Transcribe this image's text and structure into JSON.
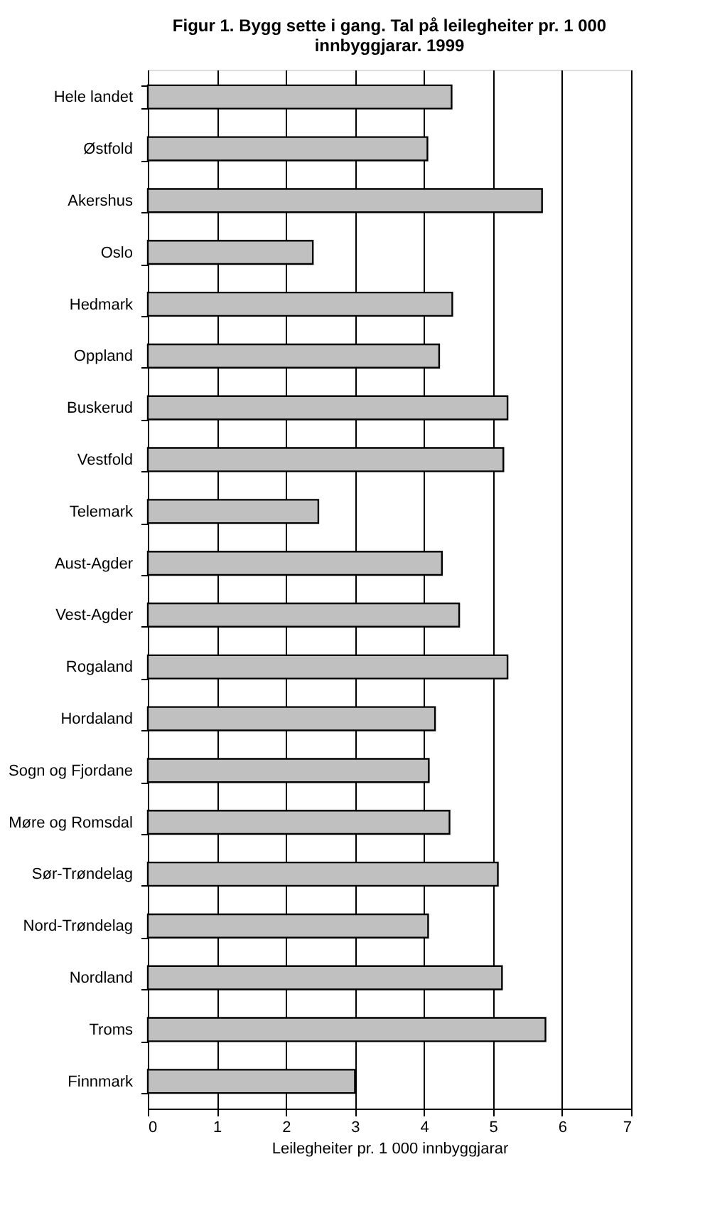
{
  "chart_data": {
    "type": "bar",
    "orientation": "horizontal",
    "title": [
      "Figur 1. Bygg sette i gang. Tal på leilegheiter pr. 1 000",
      "innbyggjarar. 1999"
    ],
    "xlabel": "Leilegheiter pr. 1 000 innbyggjarar",
    "categories": [
      "Hele landet",
      "Østfold",
      "Akershus",
      "Oslo",
      "Hedmark",
      "Oppland",
      "Buskerud",
      "Vestfold",
      "Telemark",
      "Aust-Agder",
      "Vest-Agder",
      "Rogaland",
      "Hordaland",
      "Sogn og Fjordane",
      "Møre og Romsdal",
      "Sør-Trøndelag",
      "Nord-Trøndelag",
      "Nordland",
      "Troms",
      "Finnmark"
    ],
    "values": [
      4.4,
      4.05,
      5.71,
      2.39,
      4.41,
      4.22,
      5.21,
      5.15,
      2.47,
      4.26,
      4.51,
      5.21,
      4.16,
      4.07,
      4.37,
      5.07,
      4.06,
      5.13,
      5.76,
      3.0
    ],
    "color": "#c0c0c0",
    "xlim": [
      0,
      7
    ],
    "xticks": [
      0,
      1,
      2,
      3,
      4,
      5,
      6,
      7
    ],
    "grid": "x"
  }
}
